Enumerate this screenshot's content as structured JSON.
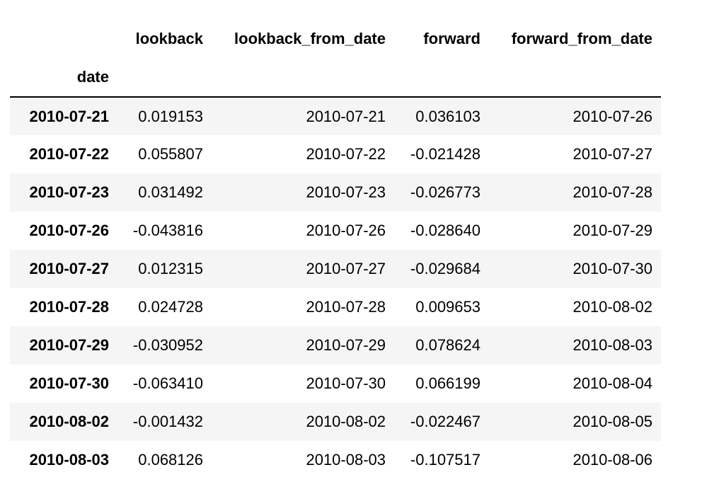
{
  "table": {
    "columns": [
      "lookback",
      "lookback_from_date",
      "forward",
      "forward_from_date"
    ],
    "index_name": "date",
    "rows": [
      {
        "date": "2010-07-21",
        "cells": [
          "0.019153",
          "2010-07-21",
          "0.036103",
          "2010-07-26"
        ]
      },
      {
        "date": "2010-07-22",
        "cells": [
          "0.055807",
          "2010-07-22",
          "-0.021428",
          "2010-07-27"
        ]
      },
      {
        "date": "2010-07-23",
        "cells": [
          "0.031492",
          "2010-07-23",
          "-0.026773",
          "2010-07-28"
        ]
      },
      {
        "date": "2010-07-26",
        "cells": [
          "-0.043816",
          "2010-07-26",
          "-0.028640",
          "2010-07-29"
        ]
      },
      {
        "date": "2010-07-27",
        "cells": [
          "0.012315",
          "2010-07-27",
          "-0.029684",
          "2010-07-30"
        ]
      },
      {
        "date": "2010-07-28",
        "cells": [
          "0.024728",
          "2010-07-28",
          "0.009653",
          "2010-08-02"
        ]
      },
      {
        "date": "2010-07-29",
        "cells": [
          "-0.030952",
          "2010-07-29",
          "0.078624",
          "2010-08-03"
        ]
      },
      {
        "date": "2010-07-30",
        "cells": [
          "-0.063410",
          "2010-07-30",
          "0.066199",
          "2010-08-04"
        ]
      },
      {
        "date": "2010-08-02",
        "cells": [
          "-0.001432",
          "2010-08-02",
          "-0.022467",
          "2010-08-05"
        ]
      },
      {
        "date": "2010-08-03",
        "cells": [
          "0.068126",
          "2010-08-03",
          "-0.107517",
          "2010-08-06"
        ]
      }
    ]
  }
}
